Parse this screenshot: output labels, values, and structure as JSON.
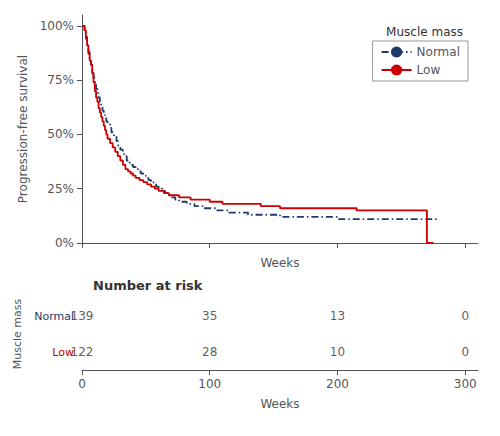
{
  "chart_data": {
    "type": "line",
    "xlabel": "Weeks",
    "ylabel": "Progression-free survival",
    "xlim": [
      0,
      310
    ],
    "ylim": [
      0,
      1.05
    ],
    "xticks": [
      0,
      100,
      200,
      300
    ],
    "yticks": [
      {
        "value": 0,
        "label": "0%"
      },
      {
        "value": 0.25,
        "label": "25%"
      },
      {
        "value": 0.5,
        "label": "50%"
      },
      {
        "value": 0.75,
        "label": "75%"
      },
      {
        "value": 1.0,
        "label": "100%"
      }
    ],
    "grid": false,
    "legend": "upper right",
    "legend_title": "Muscle mass",
    "series": [
      {
        "name": "Normal",
        "color": "#1F3B6B",
        "line_style": "dashdot",
        "x": [
          0,
          2,
          3,
          4,
          5,
          6,
          7,
          8,
          9,
          10,
          11,
          12,
          13,
          14,
          15,
          16,
          17,
          18,
          19,
          20,
          22,
          23,
          25,
          27,
          28,
          30,
          32,
          33,
          35,
          37,
          39,
          40,
          42,
          44,
          46,
          48,
          50,
          52,
          54,
          56,
          58,
          60,
          63,
          65,
          68,
          70,
          73,
          76,
          79,
          82,
          85,
          88,
          91,
          95,
          100,
          105,
          110,
          115,
          120,
          130,
          140,
          155,
          170,
          185,
          200,
          215,
          230,
          245,
          260,
          270,
          280
        ],
        "values": [
          1.0,
          0.97,
          0.94,
          0.91,
          0.88,
          0.85,
          0.82,
          0.79,
          0.76,
          0.73,
          0.71,
          0.69,
          0.67,
          0.65,
          0.63,
          0.61,
          0.59,
          0.58,
          0.56,
          0.55,
          0.53,
          0.51,
          0.49,
          0.47,
          0.45,
          0.43,
          0.41,
          0.4,
          0.38,
          0.37,
          0.36,
          0.35,
          0.34,
          0.33,
          0.32,
          0.31,
          0.3,
          0.29,
          0.28,
          0.27,
          0.26,
          0.25,
          0.24,
          0.23,
          0.22,
          0.21,
          0.2,
          0.19,
          0.19,
          0.18,
          0.18,
          0.17,
          0.17,
          0.16,
          0.16,
          0.15,
          0.15,
          0.14,
          0.14,
          0.13,
          0.13,
          0.12,
          0.12,
          0.12,
          0.11,
          0.11,
          0.11,
          0.11,
          0.11,
          0.11,
          0.11
        ]
      },
      {
        "name": "Low",
        "color": "#CC0000",
        "line_style": "solid",
        "x": [
          0,
          2,
          3,
          4,
          5,
          6,
          7,
          8,
          9,
          10,
          11,
          12,
          13,
          14,
          15,
          16,
          17,
          18,
          19,
          20,
          22,
          24,
          26,
          28,
          30,
          32,
          34,
          36,
          38,
          40,
          42,
          45,
          48,
          51,
          54,
          57,
          60,
          64,
          68,
          72,
          76,
          80,
          85,
          90,
          95,
          100,
          110,
          120,
          130,
          140,
          155,
          170,
          185,
          200,
          215,
          230,
          245,
          260,
          270,
          275
        ],
        "values": [
          1.0,
          0.98,
          0.95,
          0.91,
          0.87,
          0.84,
          0.82,
          0.78,
          0.74,
          0.7,
          0.67,
          0.65,
          0.62,
          0.6,
          0.58,
          0.56,
          0.54,
          0.52,
          0.5,
          0.48,
          0.46,
          0.44,
          0.42,
          0.4,
          0.38,
          0.36,
          0.34,
          0.33,
          0.32,
          0.31,
          0.3,
          0.29,
          0.28,
          0.27,
          0.26,
          0.25,
          0.24,
          0.23,
          0.22,
          0.22,
          0.21,
          0.21,
          0.2,
          0.2,
          0.2,
          0.19,
          0.18,
          0.18,
          0.18,
          0.17,
          0.16,
          0.16,
          0.16,
          0.16,
          0.15,
          0.15,
          0.15,
          0.15,
          0.0,
          0.0
        ]
      }
    ],
    "risk_table": {
      "title": "Number at risk",
      "ylabel": "Muscle mass",
      "xlabel": "Weeks",
      "times": [
        0,
        100,
        200,
        300
      ],
      "rows": [
        {
          "name": "Normal",
          "values": [
            139,
            35,
            13,
            0
          ]
        },
        {
          "name": "Low",
          "values": [
            122,
            28,
            10,
            0
          ]
        }
      ]
    }
  }
}
